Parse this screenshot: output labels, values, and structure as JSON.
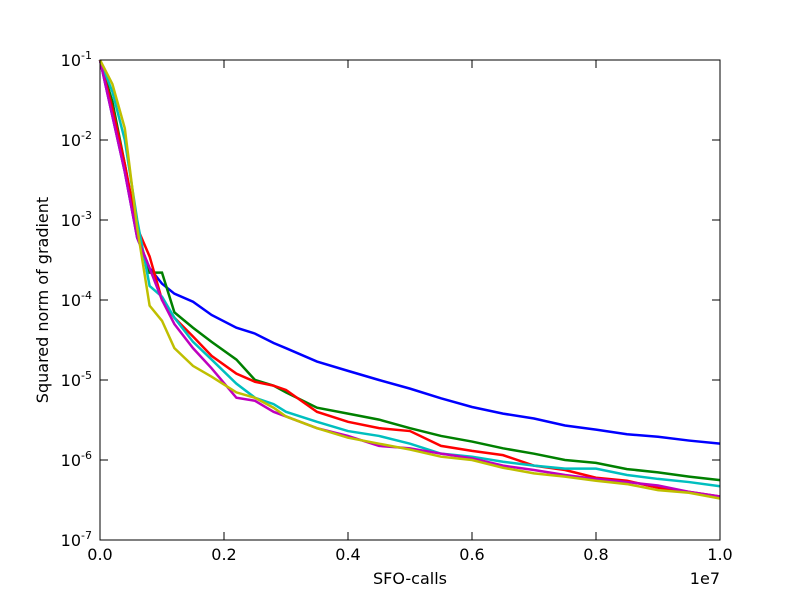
{
  "chart_data": {
    "type": "line",
    "x_label": "SFO-calls",
    "y_label": "Squared norm of gradient",
    "x_offset_label": "1e7",
    "x": [
      0,
      0.02,
      0.04,
      0.06,
      0.08,
      0.1,
      0.12,
      0.15,
      0.18,
      0.22,
      0.25,
      0.28,
      0.3,
      0.35,
      0.4,
      0.45,
      0.5,
      0.55,
      0.6,
      0.65,
      0.7,
      0.75,
      0.8,
      0.85,
      0.9,
      0.95,
      1.0
    ],
    "series": [
      {
        "color": "#0000ff",
        "values": [
          0.1,
          0.02,
          0.004,
          0.0006,
          0.00025,
          0.00016,
          0.00012,
          9.5e-05,
          6.5e-05,
          4.5e-05,
          3.8e-05,
          2.9e-05,
          2.5e-05,
          1.7e-05,
          1.3e-05,
          1e-05,
          7.8e-06,
          5.9e-06,
          4.6e-06,
          3.8e-06,
          3.3e-06,
          2.7e-06,
          2.4e-06,
          2.1e-06,
          1.95e-06,
          1.75e-06,
          1.6e-06
        ]
      },
      {
        "color": "#008000",
        "values": [
          0.1,
          0.03,
          0.005,
          0.0007,
          0.00022,
          0.00022,
          7e-05,
          4.5e-05,
          3e-05,
          1.8e-05,
          1e-05,
          8.5e-06,
          7e-06,
          4.5e-06,
          3.8e-06,
          3.2e-06,
          2.5e-06,
          2e-06,
          1.7e-06,
          1.4e-06,
          1.2e-06,
          1e-06,
          9.2e-07,
          7.7e-07,
          7e-07,
          6.2e-07,
          5.6e-07
        ]
      },
      {
        "color": "#ff0000",
        "values": [
          0.1,
          0.025,
          0.005,
          0.0008,
          0.00035,
          0.0001,
          6e-05,
          3.5e-05,
          2e-05,
          1.2e-05,
          9.5e-06,
          8.5e-06,
          7.5e-06,
          4e-06,
          3e-06,
          2.5e-06,
          2.3e-06,
          1.5e-06,
          1.3e-06,
          1.15e-06,
          8.5e-07,
          7.5e-07,
          6e-07,
          5.5e-07,
          4.5e-07,
          4e-07,
          3.5e-07
        ]
      },
      {
        "color": "#00bfbf",
        "values": [
          0.1,
          0.04,
          0.01,
          0.001,
          0.00015,
          0.00011,
          6e-05,
          3e-05,
          1.8e-05,
          9e-06,
          6e-06,
          5e-06,
          4e-06,
          3e-06,
          2.3e-06,
          2e-06,
          1.6e-06,
          1.2e-06,
          1.1e-06,
          9.5e-07,
          8.5e-07,
          7.8e-07,
          7.8e-07,
          6.5e-07,
          5.8e-07,
          5.3e-07,
          4.7e-07
        ]
      },
      {
        "color": "#bf00bf",
        "values": [
          0.1,
          0.02,
          0.004,
          0.0006,
          0.00025,
          0.0001,
          5e-05,
          2.5e-05,
          1.4e-05,
          6e-06,
          5.5e-06,
          4e-06,
          3.5e-06,
          2.5e-06,
          2e-06,
          1.5e-06,
          1.4e-06,
          1.2e-06,
          1.05e-06,
          8.5e-07,
          7.5e-07,
          6.5e-07,
          5.8e-07,
          5.3e-07,
          4.8e-07,
          4e-07,
          3.5e-07
        ]
      },
      {
        "color": "#bfbf00",
        "values": [
          0.1,
          0.05,
          0.014,
          0.0008,
          8.5e-05,
          5.5e-05,
          2.5e-05,
          1.5e-05,
          1.1e-05,
          7e-06,
          6e-06,
          4.5e-06,
          3.5e-06,
          2.5e-06,
          1.9e-06,
          1.6e-06,
          1.35e-06,
          1.1e-06,
          1e-06,
          8e-07,
          6.8e-07,
          6.2e-07,
          5.5e-07,
          5e-07,
          4.2e-07,
          3.9e-07,
          3.3e-07
        ]
      }
    ],
    "xlim": [
      0,
      1.0
    ],
    "ylim": [
      1e-07,
      0.1
    ],
    "ylog": true,
    "xticks": [
      {
        "value": 0,
        "label": "0.0"
      },
      {
        "value": 0.2,
        "label": "0.2"
      },
      {
        "value": 0.4,
        "label": "0.4"
      },
      {
        "value": 0.6,
        "label": "0.6"
      },
      {
        "value": 0.8,
        "label": "0.8"
      },
      {
        "value": 1.0,
        "label": "1.0"
      }
    ],
    "yticks": [
      {
        "value": 1e-07,
        "label": "10^-7"
      },
      {
        "value": 1e-06,
        "label": "10^-6"
      },
      {
        "value": 1e-05,
        "label": "10^-5"
      },
      {
        "value": 0.0001,
        "label": "10^-4"
      },
      {
        "value": 0.001,
        "label": "10^-3"
      },
      {
        "value": 0.01,
        "label": "10^-2"
      },
      {
        "value": 0.1,
        "label": "10^-1"
      }
    ]
  }
}
